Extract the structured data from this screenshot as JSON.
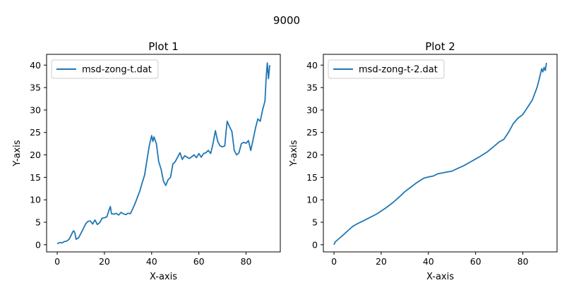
{
  "figure": {
    "suptitle": "9000"
  },
  "chart_data": [
    {
      "type": "line",
      "title": "Plot 1",
      "xlabel": "X-axis",
      "ylabel": "Y-axis",
      "xlim": [
        -4.5,
        94.5
      ],
      "ylim": [
        -1.6,
        42.4
      ],
      "xticks": [
        0,
        20,
        40,
        60,
        80
      ],
      "yticks": [
        0,
        5,
        10,
        15,
        20,
        25,
        30,
        35,
        40
      ],
      "legend_position": "upper left",
      "series": [
        {
          "name": "msd-zong-t.dat",
          "color": "#1f77b4",
          "x": [
            0,
            1,
            2,
            3,
            4,
            5,
            6,
            6.5,
            7,
            7.5,
            8,
            8.5,
            9,
            10,
            11,
            12,
            13,
            14,
            15,
            16,
            17,
            18,
            19,
            20,
            21,
            22,
            22.5,
            23,
            24,
            25,
            26,
            27,
            28,
            29,
            30,
            31,
            32,
            33,
            34,
            35,
            36,
            37,
            38,
            39,
            40,
            40.5,
            41,
            42,
            43,
            44,
            45,
            46,
            47,
            48,
            49,
            50,
            51,
            52,
            53,
            54,
            55,
            56,
            57,
            58,
            59,
            60,
            61,
            62,
            63,
            64,
            65,
            66,
            67,
            68,
            69,
            70,
            71,
            71.5,
            72,
            73,
            74,
            75,
            76,
            77,
            78,
            79,
            80,
            81,
            82,
            83,
            84,
            85,
            86,
            87,
            88,
            88.5,
            89,
            89.5,
            90
          ],
          "y": [
            0.2,
            0.5,
            0.4,
            0.7,
            0.8,
            1.2,
            2.2,
            2.8,
            3.1,
            2.6,
            1.2,
            1.4,
            1.5,
            2.5,
            3.5,
            4.6,
            5.2,
            5.3,
            4.6,
            5.5,
            4.5,
            4.9,
            5.9,
            6.0,
            6.2,
            7.8,
            8.5,
            6.9,
            6.8,
            7.0,
            6.6,
            7.2,
            6.9,
            6.7,
            7.0,
            6.9,
            8.0,
            9.2,
            10.6,
            12.0,
            13.8,
            15.5,
            18.8,
            22.0,
            24.3,
            23.0,
            24.0,
            22.5,
            18.5,
            16.8,
            14.2,
            13.2,
            14.5,
            15.0,
            18.0,
            18.5,
            19.5,
            20.5,
            19.0,
            19.8,
            19.5,
            19.2,
            19.6,
            20.0,
            19.4,
            20.3,
            19.5,
            20.3,
            20.5,
            21.0,
            20.3,
            22.5,
            25.4,
            23.0,
            22.0,
            21.8,
            22.0,
            25.0,
            27.5,
            26.3,
            25.2,
            21.0,
            20.0,
            20.5,
            22.5,
            22.8,
            22.6,
            23.2,
            21.0,
            23.5,
            26.0,
            28.0,
            27.5,
            30.0,
            32.0,
            37.0,
            40.5,
            37.0,
            40.0
          ]
        }
      ]
    },
    {
      "type": "line",
      "title": "Plot 2",
      "xlabel": "X-axis",
      "ylabel": "Y-axis",
      "xlim": [
        -4.5,
        94.5
      ],
      "ylim": [
        -1.6,
        42.4
      ],
      "xticks": [
        0,
        20,
        40,
        60,
        80
      ],
      "yticks": [
        0,
        5,
        10,
        15,
        20,
        25,
        30,
        35,
        40
      ],
      "legend_position": "upper left",
      "series": [
        {
          "name": "msd-zong-t-2.dat",
          "color": "#1f77b4",
          "x": [
            0,
            0.5,
            2,
            4,
            6,
            8,
            10,
            12,
            15,
            18,
            20,
            22,
            25,
            28,
            30,
            32,
            35,
            38,
            40,
            42,
            44,
            46,
            48,
            50,
            52,
            55,
            58,
            60,
            62,
            65,
            68,
            70,
            72,
            74,
            76,
            78,
            80,
            82,
            84,
            86,
            87,
            88,
            88.5,
            89,
            89.5,
            90
          ],
          "y": [
            0.0,
            0.6,
            1.3,
            2.2,
            3.2,
            4.1,
            4.7,
            5.2,
            6.0,
            6.8,
            7.5,
            8.2,
            9.4,
            10.8,
            11.8,
            12.6,
            13.8,
            14.8,
            15.1,
            15.3,
            15.8,
            16.0,
            16.2,
            16.4,
            16.9,
            17.6,
            18.5,
            19.1,
            19.7,
            20.7,
            22.0,
            22.9,
            23.5,
            25.1,
            27.0,
            28.2,
            29.0,
            30.6,
            32.2,
            35.0,
            37.0,
            39.2,
            38.5,
            39.5,
            38.8,
            40.5
          ]
        }
      ]
    }
  ]
}
